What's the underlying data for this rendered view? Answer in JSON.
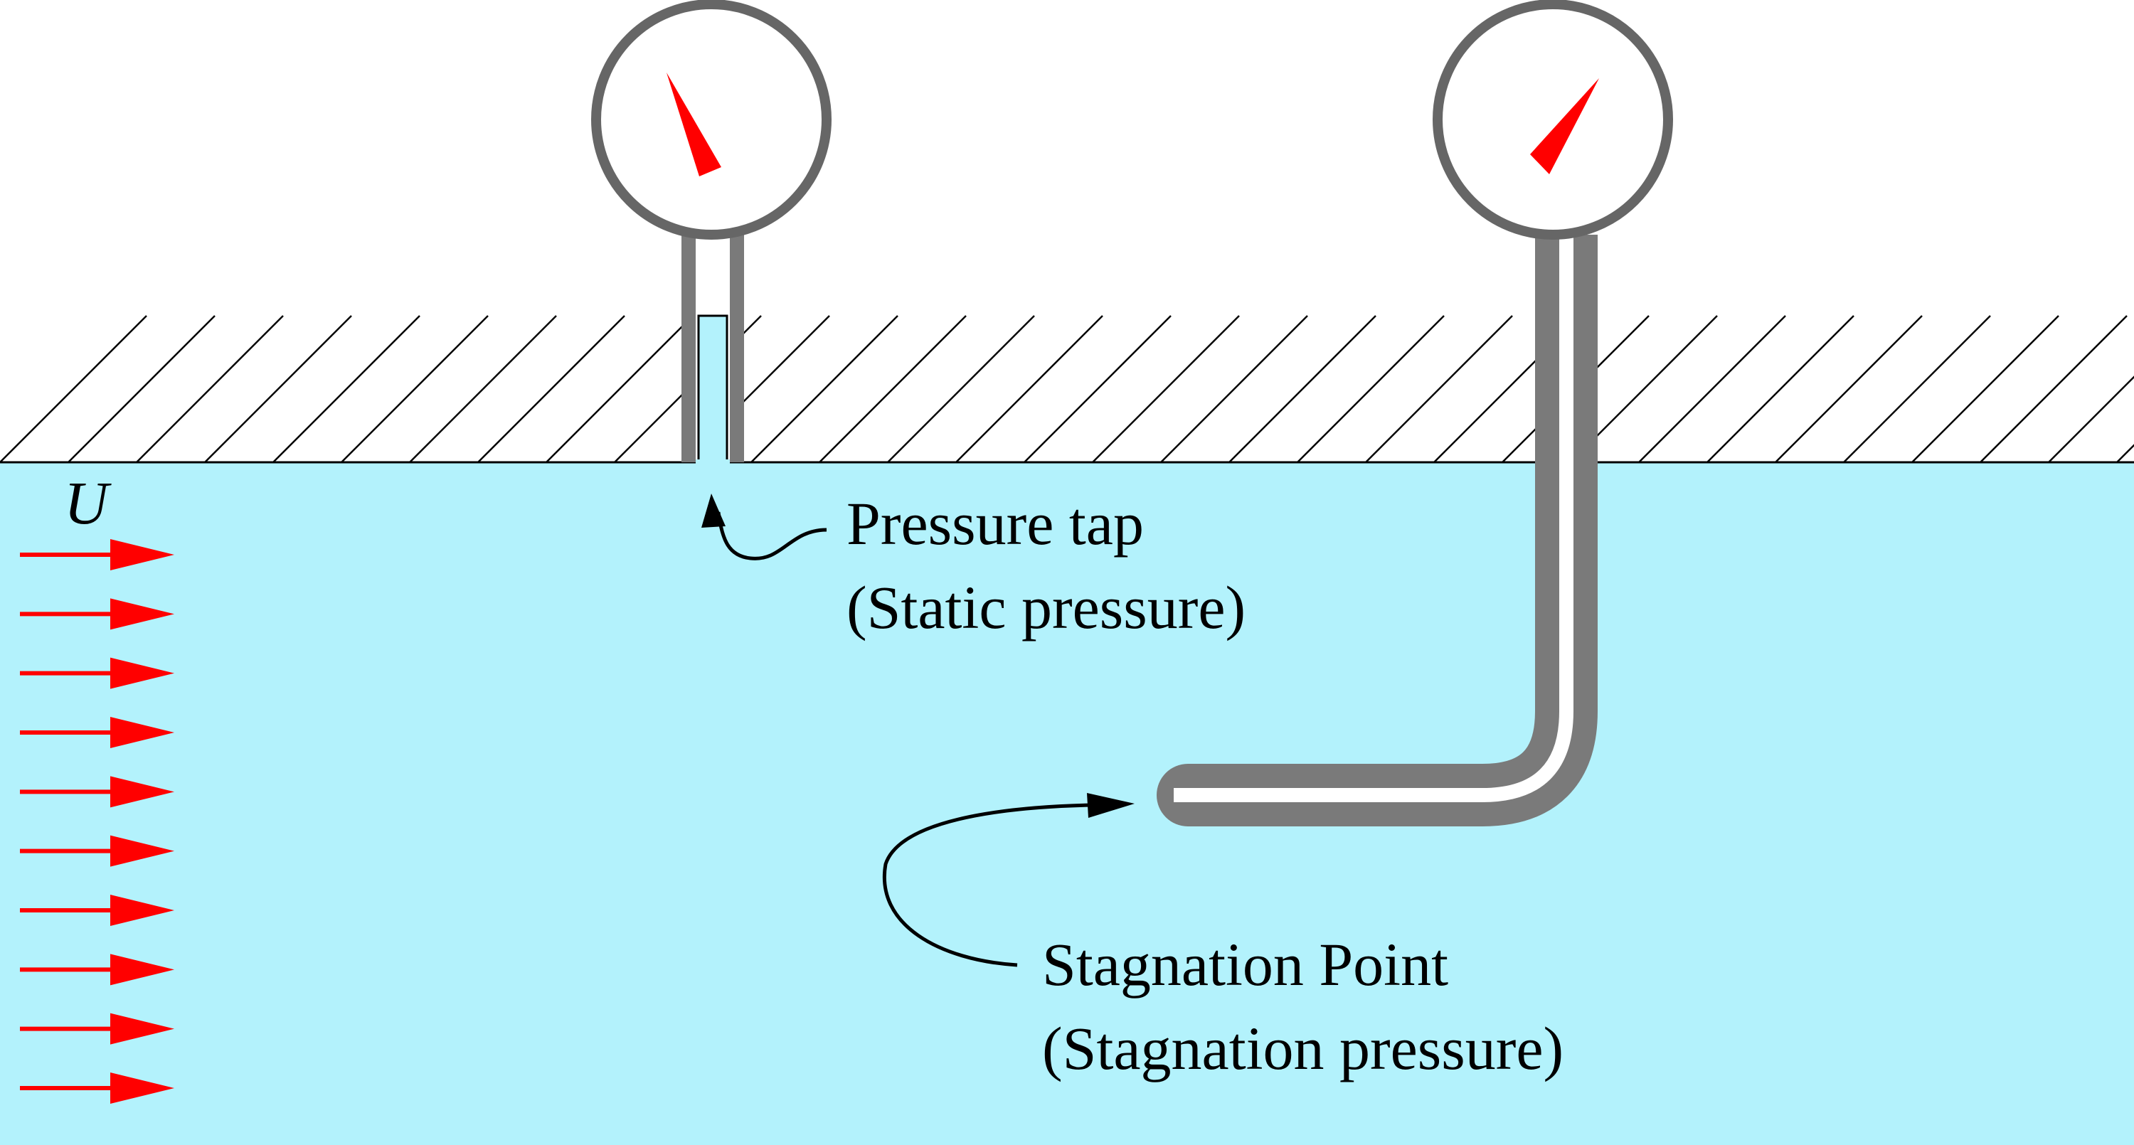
{
  "colors": {
    "fluid": "#b3f2fc",
    "pipe": "#7a7a7a",
    "needle": "#ff0000",
    "flow_arrow": "#ff0000",
    "hatch": "#000000",
    "background": "#ffffff"
  },
  "flow": {
    "velocity_symbol": "U",
    "arrow_count": 10
  },
  "labels": {
    "pressure_tap_line1": "Pressure tap",
    "pressure_tap_line2": "(Static pressure)",
    "stagnation_line1": "Stagnation Point",
    "stagnation_line2": "(Stagnation pressure)"
  }
}
